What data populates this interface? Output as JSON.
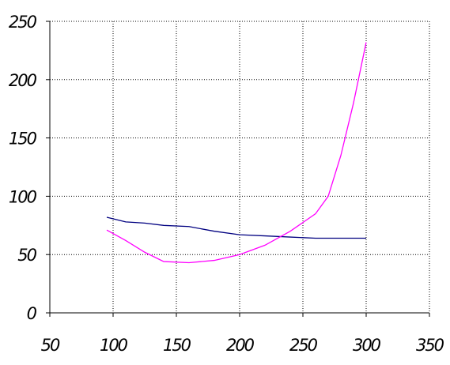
{
  "chart_data": {
    "type": "line",
    "x": [
      95,
      110,
      125,
      140,
      160,
      180,
      200,
      220,
      240,
      260,
      270,
      280,
      290,
      300
    ],
    "series": [
      {
        "color": "#000080",
        "values": [
          82,
          78,
          77,
          75,
          74,
          70,
          67,
          66,
          65,
          64,
          64,
          64,
          64,
          64
        ]
      },
      {
        "color": "#ff00ff",
        "values": [
          71,
          62,
          52,
          44,
          43,
          45,
          50,
          58,
          70,
          85,
          100,
          135,
          180,
          232
        ]
      }
    ],
    "xlim": [
      50,
      350
    ],
    "xticks": [
      50,
      100,
      150,
      200,
      250,
      300,
      350
    ],
    "ylim": [
      0,
      250
    ],
    "yticks": [
      0,
      50,
      100,
      150,
      200,
      250
    ],
    "grid": true
  }
}
